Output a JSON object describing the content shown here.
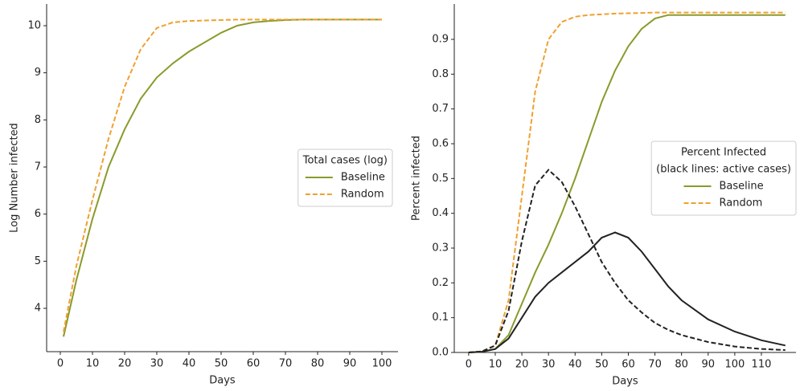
{
  "chart_data": [
    {
      "type": "line",
      "x_label": "Days",
      "y_label": "Log Number infected",
      "x": [
        1,
        5,
        10,
        15,
        20,
        25,
        30,
        35,
        40,
        45,
        50,
        55,
        60,
        65,
        70,
        75,
        80,
        90,
        100
      ],
      "series": [
        {
          "name": "Baseline",
          "color": "#8b9a2b",
          "dash": false,
          "values": [
            3.4,
            4.6,
            5.9,
            7.0,
            7.8,
            8.45,
            8.9,
            9.2,
            9.45,
            9.65,
            9.85,
            10.0,
            10.07,
            10.1,
            10.12,
            10.13,
            10.13,
            10.13,
            10.13
          ]
        },
        {
          "name": "Random",
          "color": "#f0a030",
          "dash": true,
          "values": [
            3.5,
            4.9,
            6.3,
            7.6,
            8.7,
            9.5,
            9.95,
            10.07,
            10.1,
            10.11,
            10.12,
            10.13,
            10.13,
            10.13,
            10.13,
            10.13,
            10.13,
            10.13,
            10.13
          ]
        }
      ],
      "xlim": [
        -4.25,
        105
      ],
      "ylim": [
        3.08,
        10.46
      ],
      "xticks": [
        0,
        10,
        20,
        30,
        40,
        50,
        60,
        70,
        80,
        90,
        100
      ],
      "yticks": [
        4,
        5,
        6,
        7,
        8,
        9,
        10
      ],
      "legend_title": [
        "Total cases (log)"
      ],
      "legend_loc": "center right"
    },
    {
      "type": "line",
      "x_label": "Days",
      "y_label": "Percent infected",
      "x": [
        0,
        5,
        10,
        15,
        20,
        25,
        30,
        35,
        40,
        45,
        50,
        55,
        60,
        65,
        70,
        75,
        80,
        90,
        100,
        110,
        119
      ],
      "series": [
        {
          "name": "Baseline",
          "color": "#8b9a2b",
          "dash": false,
          "values": [
            0,
            0.002,
            0.01,
            0.05,
            0.14,
            0.23,
            0.31,
            0.4,
            0.5,
            0.61,
            0.72,
            0.81,
            0.88,
            0.93,
            0.96,
            0.97,
            0.97,
            0.97,
            0.97,
            0.97,
            0.97
          ]
        },
        {
          "name": "Random",
          "color": "#f0a030",
          "dash": true,
          "values": [
            0,
            0.003,
            0.02,
            0.15,
            0.45,
            0.75,
            0.9,
            0.95,
            0.965,
            0.97,
            0.972,
            0.974,
            0.975,
            0.976,
            0.977,
            0.977,
            0.977,
            0.977,
            0.977,
            0.977,
            0.977
          ]
        },
        {
          "color": "#222222",
          "dash": false,
          "values": [
            0,
            0.002,
            0.01,
            0.04,
            0.1,
            0.16,
            0.2,
            0.23,
            0.26,
            0.29,
            0.33,
            0.345,
            0.33,
            0.29,
            0.24,
            0.19,
            0.15,
            0.095,
            0.06,
            0.035,
            0.02
          ]
        },
        {
          "color": "#222222",
          "dash": true,
          "values": [
            0,
            0.003,
            0.02,
            0.12,
            0.32,
            0.48,
            0.525,
            0.49,
            0.42,
            0.34,
            0.26,
            0.2,
            0.15,
            0.115,
            0.085,
            0.065,
            0.05,
            0.03,
            0.017,
            0.01,
            0.007
          ]
        }
      ],
      "xlim": [
        -5.4,
        123
      ],
      "ylim": [
        0,
        1.0016
      ],
      "xticks": [
        0,
        10,
        20,
        30,
        40,
        50,
        60,
        70,
        80,
        90,
        100,
        110
      ],
      "yticks": [
        {
          "value": 0,
          "label": "0.0"
        },
        0.1,
        0.2,
        0.3,
        0.4,
        0.5,
        0.6,
        0.7,
        0.8,
        0.9
      ],
      "legend_title": [
        "Percent Infected",
        "(black lines: active cases)"
      ],
      "legend_loc": "center right"
    }
  ]
}
